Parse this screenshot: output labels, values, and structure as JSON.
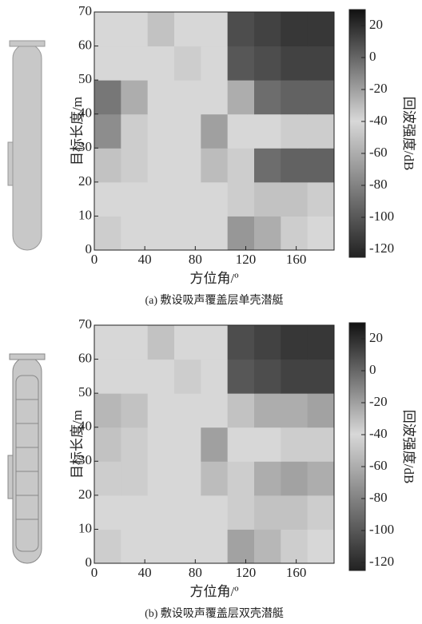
{
  "chart_data": [
    {
      "type": "heatmap",
      "title": "(a) 敷设吸声覆盖层单壳潜艇",
      "xlabel": "方位角/º",
      "ylabel": "目标长度/m",
      "colorbar_label": "回波强度/dB",
      "xlim": [
        0,
        190
      ],
      "ylim": [
        0,
        70
      ],
      "xticks": [
        0,
        40,
        80,
        120,
        160
      ],
      "yticks": [
        0,
        10,
        20,
        30,
        40,
        50,
        60,
        70
      ],
      "clim": [
        -125,
        30
      ],
      "cticks": [
        20,
        0,
        -20,
        -40,
        -60,
        -80,
        -100,
        -120
      ],
      "colormap": [
        "#f2f2f2",
        "#111111",
        "#d8d8d8",
        "#222222"
      ],
      "z": [
        [
          -45,
          -40,
          -40,
          -40,
          -40,
          -70,
          -60,
          -45,
          -40
        ],
        [
          -40,
          -40,
          -40,
          -40,
          -40,
          -45,
          -50,
          -50,
          -45
        ],
        [
          -50,
          -45,
          -40,
          -40,
          -30,
          -45,
          -90,
          -95,
          -95
        ],
        [
          -75,
          -45,
          -40,
          -40,
          -20,
          -40,
          -40,
          -45,
          -45
        ],
        [
          -85,
          -60,
          -40,
          -40,
          -40,
          -60,
          -90,
          -95,
          -95
        ],
        [
          -40,
          -40,
          -40,
          -45,
          -40,
          -100,
          -105,
          -110,
          -110
        ],
        [
          -40,
          -40,
          -50,
          -40,
          -40,
          -105,
          -110,
          -115,
          -115
        ]
      ]
    },
    {
      "type": "heatmap",
      "title": "(b) 敷设吸声覆盖层双壳潜艇",
      "xlabel": "方位角/º",
      "ylabel": "目标长度/m",
      "colorbar_label": "回波强度/dB",
      "xlim": [
        0,
        190
      ],
      "ylim": [
        0,
        70
      ],
      "xticks": [
        0,
        40,
        80,
        120,
        160
      ],
      "yticks": [
        0,
        10,
        20,
        30,
        40,
        50,
        60,
        70
      ],
      "clim": [
        -125,
        30
      ],
      "cticks": [
        20,
        0,
        -20,
        -40,
        -60,
        -80,
        -100,
        -120
      ],
      "colormap": [
        "#f2f2f2",
        "#111111",
        "#d8d8d8",
        "#222222"
      ],
      "z": [
        [
          -45,
          -40,
          -40,
          -40,
          -40,
          -65,
          -55,
          -45,
          -40
        ],
        [
          -40,
          -40,
          -40,
          -40,
          -40,
          -45,
          -50,
          -50,
          -45
        ],
        [
          -45,
          -45,
          -40,
          -40,
          -30,
          -45,
          -60,
          -65,
          -60
        ],
        [
          -50,
          -45,
          -40,
          -40,
          -20,
          -40,
          -40,
          -45,
          -45
        ],
        [
          -55,
          -50,
          -40,
          -40,
          -40,
          -50,
          -60,
          -60,
          -65
        ],
        [
          -40,
          -40,
          -40,
          -45,
          -40,
          -100,
          -105,
          -110,
          -110
        ],
        [
          -40,
          -40,
          -50,
          -40,
          -40,
          -105,
          -110,
          -115,
          -115
        ]
      ]
    }
  ]
}
